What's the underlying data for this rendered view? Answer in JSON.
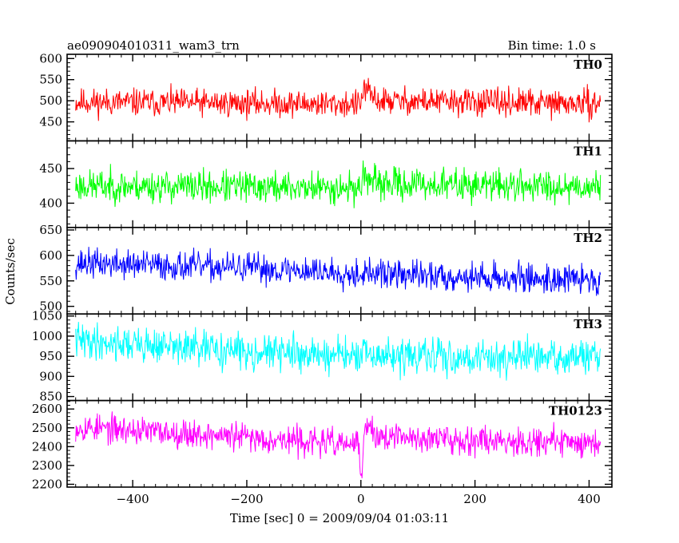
{
  "header": {
    "title": "ae090904010311_wam3_trn",
    "bin_time": "Bin time: 1.0 s"
  },
  "chart_data": {
    "type": "line",
    "xlabel": "Time [sec] 0 = 2009/09/04 01:03:11",
    "ylabel": "Counts/sec",
    "xlim": [
      -515,
      440
    ],
    "x_ticks": [
      -400,
      -200,
      0,
      200,
      400
    ],
    "x_range": [
      -500,
      420
    ],
    "panels": [
      {
        "name": "TH0",
        "color": "#ff0000",
        "ylim": [
          405,
          610
        ],
        "y_ticks": [
          450,
          500,
          550,
          600
        ],
        "baseline": [
          [
            -500,
            497
          ],
          [
            0,
            492
          ],
          [
            5,
            530
          ],
          [
            15,
            515
          ],
          [
            30,
            500
          ],
          [
            420,
            492
          ]
        ],
        "noise": 28,
        "seed": 11
      },
      {
        "name": "TH1",
        "color": "#00ff00",
        "ylim": [
          365,
          490
        ],
        "y_ticks": [
          400,
          450
        ],
        "baseline": [
          [
            -500,
            425
          ],
          [
            0,
            422
          ],
          [
            5,
            445
          ],
          [
            20,
            428
          ],
          [
            420,
            424
          ]
        ],
        "noise": 20,
        "seed": 23
      },
      {
        "name": "TH2",
        "color": "#0000ff",
        "ylim": [
          485,
          655
        ],
        "y_ticks": [
          500,
          550,
          600,
          650
        ],
        "baseline": [
          [
            -500,
            585
          ],
          [
            -200,
            575
          ],
          [
            0,
            565
          ],
          [
            200,
            557
          ],
          [
            420,
            552
          ]
        ],
        "noise": 25,
        "seed": 37
      },
      {
        "name": "TH3",
        "color": "#00ffff",
        "ylim": [
          840,
          1055
        ],
        "y_ticks": [
          850,
          900,
          950,
          1000,
          1050
        ],
        "baseline": [
          [
            -500,
            990
          ],
          [
            -250,
            965
          ],
          [
            0,
            950
          ],
          [
            200,
            948
          ],
          [
            420,
            945
          ]
        ],
        "noise": 38,
        "seed": 41
      },
      {
        "name": "TH0123",
        "color": "#ff00ff",
        "ylim": [
          2185,
          2645
        ],
        "y_ticks": [
          2200,
          2300,
          2400,
          2500,
          2600
        ],
        "baseline": [
          [
            -500,
            2505
          ],
          [
            -250,
            2460
          ],
          [
            -5,
            2410
          ],
          [
            2,
            2260
          ],
          [
            8,
            2520
          ],
          [
            30,
            2450
          ],
          [
            420,
            2420
          ]
        ],
        "noise": 65,
        "seed": 53
      }
    ]
  }
}
